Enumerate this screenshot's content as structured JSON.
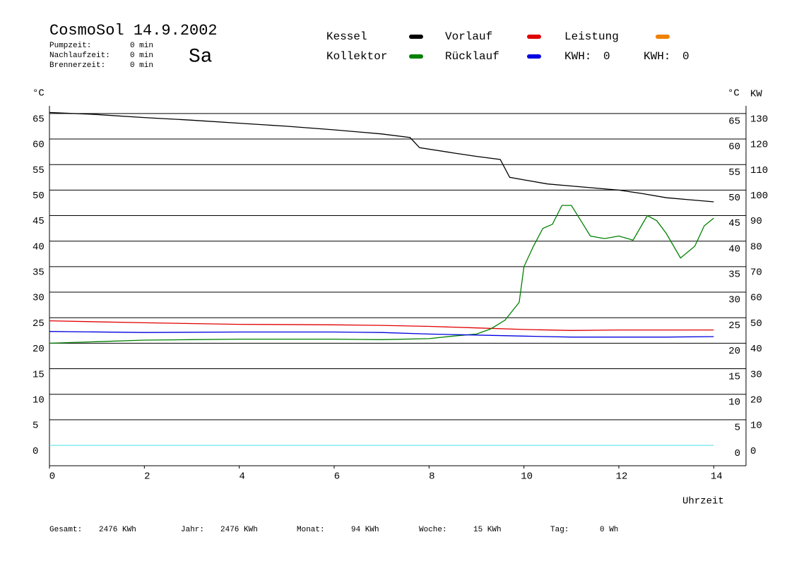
{
  "chart_data": {
    "type": "line",
    "title": "CosmoSol 14.9.2002",
    "day": "Sa",
    "day_color": "#e00000",
    "stats": [
      {
        "label": "Pumpzeit:",
        "value": "0 min"
      },
      {
        "label": "Nachlaufzeit:",
        "value": "0 min"
      },
      {
        "label": "Brennerzeit:",
        "value": "0 min"
      }
    ],
    "series": [
      {
        "name": "Kessel",
        "color": "#000000",
        "x": [
          0,
          1,
          2,
          3,
          4,
          5,
          6,
          7,
          7.6,
          7.8,
          8.5,
          9,
          9.5,
          9.7,
          10,
          10.5,
          11,
          11.5,
          12,
          12.5,
          13,
          13.5,
          14
        ],
        "values": [
          65.2,
          64.8,
          64.2,
          63.7,
          63.1,
          62.5,
          61.8,
          61,
          60.3,
          58.3,
          57.3,
          56.6,
          56,
          52.5,
          52,
          51.2,
          50.8,
          50.4,
          50,
          49.3,
          48.5,
          48.1,
          47.7
        ]
      },
      {
        "name": "Vorlauf",
        "color": "#e00000",
        "x": [
          0,
          2,
          4,
          6,
          7,
          8,
          9,
          10,
          11,
          12,
          13,
          14
        ],
        "values": [
          24.4,
          24,
          23.7,
          23.6,
          23.5,
          23.3,
          23,
          22.7,
          22.5,
          22.6,
          22.6,
          22.6
        ]
      },
      {
        "name": "Leistung",
        "color": "#f08000",
        "axis": "y2",
        "x": [],
        "values": []
      },
      {
        "name": "Kollektor",
        "color": "#008000",
        "x": [
          0,
          1,
          2,
          3,
          4,
          5,
          6,
          7,
          8,
          8.5,
          9,
          9.3,
          9.6,
          9.9,
          10,
          10.2,
          10.4,
          10.6,
          10.8,
          11,
          11.2,
          11.4,
          11.7,
          12,
          12.3,
          12.6,
          12.8,
          13,
          13.3,
          13.6,
          13.8,
          14
        ],
        "values": [
          20,
          20.3,
          20.6,
          20.7,
          20.8,
          20.8,
          20.8,
          20.7,
          20.9,
          21.4,
          21.8,
          22.8,
          24.5,
          28,
          35,
          39,
          42.5,
          43.3,
          47,
          47,
          44,
          41,
          40.5,
          41,
          40.2,
          45,
          44,
          41.5,
          36.7,
          39,
          43,
          44.5
        ]
      },
      {
        "name": "Rücklauf",
        "color": "#0000e0",
        "x": [
          0,
          2,
          4,
          6,
          7,
          8,
          9,
          10,
          11,
          12,
          13,
          14
        ],
        "values": [
          22.3,
          22.1,
          22.2,
          22.2,
          22.1,
          21.8,
          21.6,
          21.4,
          21.2,
          21.2,
          21.2,
          21.3
        ]
      }
    ],
    "kwh": [
      {
        "label": "KWH:",
        "value": 0,
        "color": "#e09020"
      },
      {
        "label": "KWH:",
        "value": 0,
        "color": "#802090"
      }
    ],
    "xlim": [
      0,
      14.68
    ],
    "xticks": [
      0,
      2,
      4,
      6,
      8,
      10,
      12,
      14
    ],
    "xlabel": "Uhrzeit",
    "ylim": [
      -4,
      66.5
    ],
    "yticks": [
      0,
      5,
      10,
      15,
      20,
      25,
      30,
      35,
      40,
      45,
      50,
      55,
      60,
      65
    ],
    "ylabel": "°C",
    "y_right_label": "°C",
    "y2lim": [
      -8,
      133
    ],
    "y2ticks": [
      0,
      10,
      20,
      30,
      40,
      50,
      60,
      70,
      80,
      90,
      100,
      110,
      120,
      130
    ],
    "y2label": "KW",
    "y2_color": "#e09020",
    "zero_line_color": "#40e0e0",
    "totals": [
      {
        "label": "Gesamt:",
        "value": "2476 KWh"
      },
      {
        "label": "Jahr:",
        "value": "2476 KWh"
      },
      {
        "label": "Monat:",
        "value": "94 KWh"
      },
      {
        "label": "Woche:",
        "value": "15 KWh"
      },
      {
        "label": "Tag:",
        "value": "0 Wh"
      }
    ]
  }
}
